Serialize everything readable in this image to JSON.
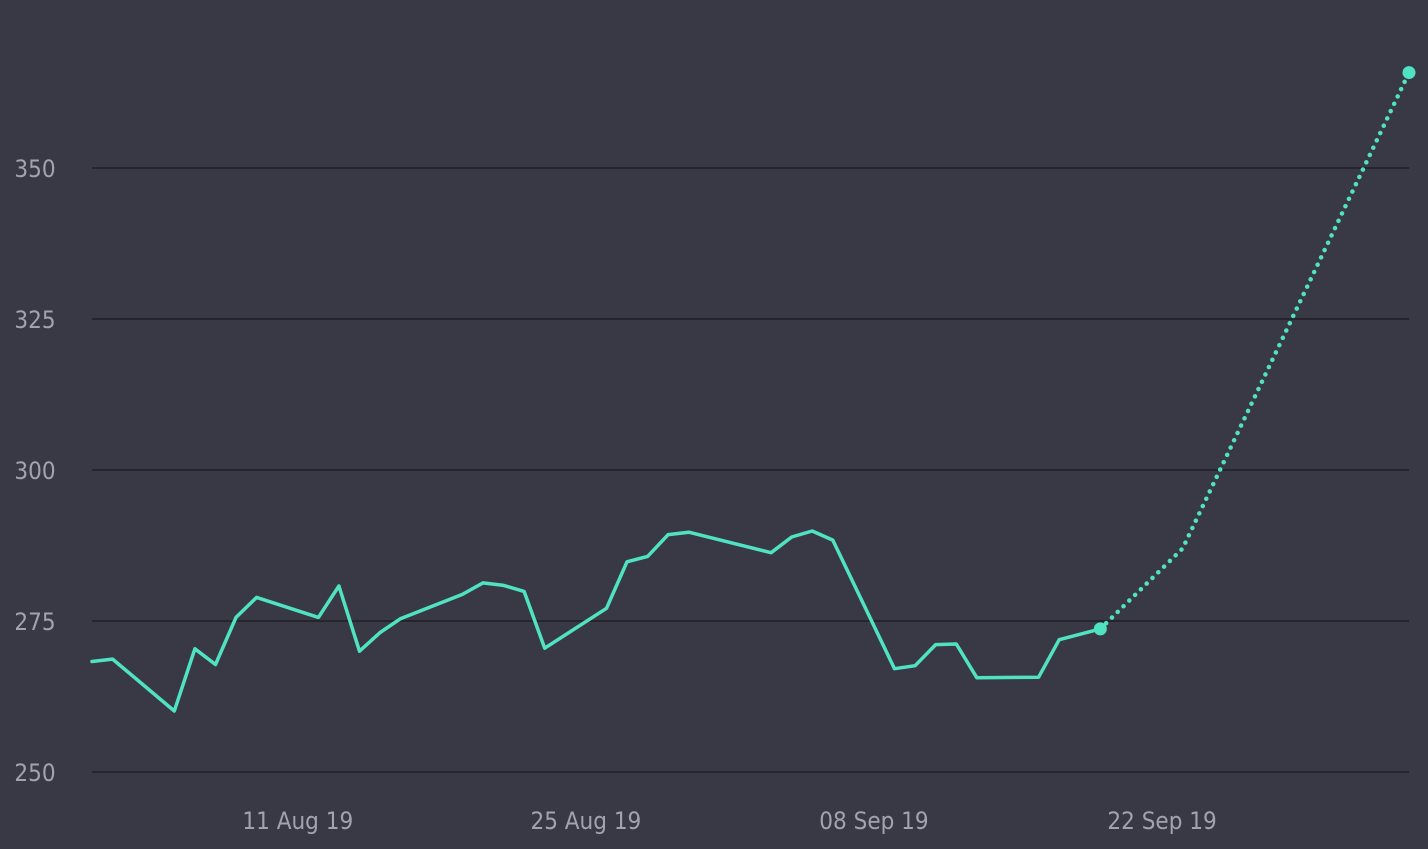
{
  "chart_data": {
    "type": "line",
    "title": "",
    "xlabel": "",
    "ylabel": "",
    "ylim": [
      250,
      370
    ],
    "yticks": [
      250,
      275,
      300,
      325,
      350
    ],
    "xticks": [
      {
        "date": "2019-08-11",
        "label": "11 Aug 19"
      },
      {
        "date": "2019-08-25",
        "label": "25 Aug 19"
      },
      {
        "date": "2019-09-08",
        "label": "08 Sep 19"
      },
      {
        "date": "2019-09-22",
        "label": "22 Sep 19"
      }
    ],
    "xlim": [
      "2019-08-01",
      "2019-10-04"
    ],
    "grid": true,
    "legend": "none",
    "colors": {
      "background": "#393945",
      "line": "#50e3c2",
      "grid": "#25252d",
      "tick_text": "#a3a3b0"
    },
    "series": [
      {
        "style": "solid",
        "x": [
          "2019-08-01",
          "2019-08-02",
          "2019-08-05",
          "2019-08-06",
          "2019-08-07",
          "2019-08-08",
          "2019-08-09",
          "2019-08-12",
          "2019-08-13",
          "2019-08-14",
          "2019-08-15",
          "2019-08-16",
          "2019-08-19",
          "2019-08-20",
          "2019-08-21",
          "2019-08-22",
          "2019-08-23",
          "2019-08-26",
          "2019-08-27",
          "2019-08-28",
          "2019-08-29",
          "2019-08-30",
          "2019-09-03",
          "2019-09-04",
          "2019-09-05",
          "2019-09-06",
          "2019-09-09",
          "2019-09-10",
          "2019-09-11",
          "2019-09-12",
          "2019-09-13",
          "2019-09-16",
          "2019-09-17",
          "2019-09-18",
          "2019-09-19"
        ],
        "values": [
          268.3,
          268.7,
          260.1,
          270.4,
          267.8,
          275.6,
          278.9,
          275.6,
          280.8,
          270.0,
          273.1,
          275.4,
          279.4,
          281.3,
          280.9,
          279.9,
          270.5,
          277.1,
          284.8,
          285.7,
          289.3,
          289.7,
          286.3,
          288.9,
          289.9,
          288.4,
          267.1,
          267.6,
          271.1,
          271.2,
          265.6,
          265.7,
          271.9,
          272.8,
          273.7
        ]
      },
      {
        "style": "dotted",
        "x": [
          "2019-09-19",
          "2019-09-23",
          "2019-10-04"
        ],
        "values": [
          273.7,
          287.0,
          365.8
        ]
      }
    ]
  }
}
